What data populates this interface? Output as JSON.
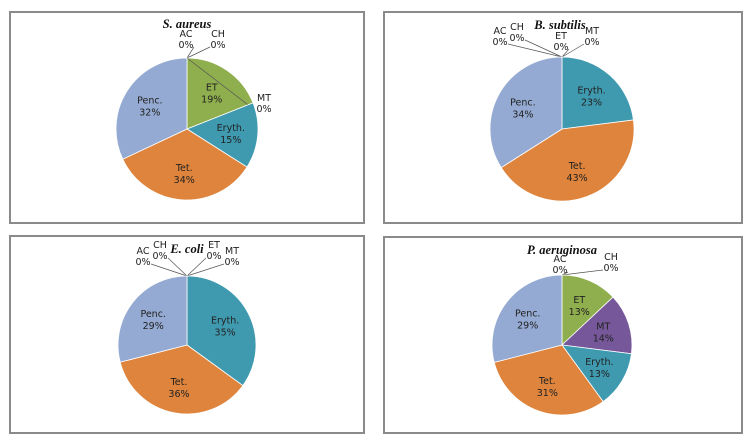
{
  "chart_data": [
    {
      "type": "pie",
      "title": "S. aureus",
      "categories": [
        "AC",
        "CH",
        "ET",
        "MT",
        "Eryth.",
        "Tet.",
        "Penc."
      ],
      "values": [
        0,
        0,
        19,
        0,
        15,
        34,
        32
      ],
      "labels": [
        "0%",
        "0%",
        "19%",
        "0%",
        "15%",
        "34%",
        "32%"
      ]
    },
    {
      "type": "pie",
      "title": "B. subtilis",
      "categories": [
        "AC",
        "CH",
        "ET",
        "MT",
        "Eryth.",
        "Tet.",
        "Penc."
      ],
      "values": [
        0,
        0,
        0,
        0,
        23,
        43,
        34
      ],
      "labels": [
        "0%",
        "0%",
        "0%",
        "0%",
        "23%",
        "43%",
        "34%"
      ]
    },
    {
      "type": "pie",
      "title": "E. coli",
      "categories": [
        "AC",
        "CH",
        "ET",
        "MT",
        "Eryth.",
        "Tet.",
        "Penc."
      ],
      "values": [
        0,
        0,
        0,
        0,
        35,
        36,
        29
      ],
      "labels": [
        "0%",
        "0%",
        "0%",
        "0%",
        "35%",
        "36%",
        "29%"
      ]
    },
    {
      "type": "pie",
      "title": "P. aeruginosa",
      "categories": [
        "AC",
        "CH",
        "ET",
        "MT",
        "Eryth.",
        "Tet.",
        "Penc."
      ],
      "values": [
        0,
        0,
        13,
        14,
        13,
        31,
        29
      ],
      "labels": [
        "0%",
        "0%",
        "13%",
        "14%",
        "13%",
        "31%",
        "29%"
      ]
    }
  ],
  "colors": {
    "AC": "#4f81bd",
    "CH": "#c0504d",
    "ET": "#8fae4e",
    "MT": "#76589a",
    "Eryth.": "#3f9ab0",
    "Tet.": "#de843c",
    "Penc.": "#94aad2"
  }
}
